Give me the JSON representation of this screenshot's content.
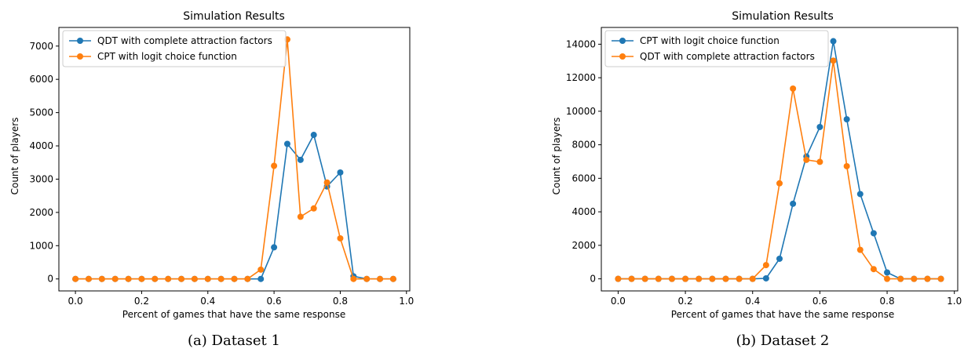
{
  "chart_data": [
    {
      "type": "line",
      "title": "Simulation Results",
      "xlabel": "Percent of games that have the same response",
      "ylabel": "Count of players",
      "caption": "(a) Dataset 1",
      "xlim": [
        -0.05,
        1.01
      ],
      "ylim": [
        -360,
        7560
      ],
      "xticks": [
        0.0,
        0.2,
        0.4,
        0.6,
        0.8,
        1.0
      ],
      "xtick_labels": [
        "0.0",
        "0.2",
        "0.4",
        "0.6",
        "0.8",
        "1.0"
      ],
      "yticks": [
        0,
        1000,
        2000,
        3000,
        4000,
        5000,
        6000,
        7000
      ],
      "ytick_labels": [
        "0",
        "1000",
        "2000",
        "3000",
        "4000",
        "5000",
        "6000",
        "7000"
      ],
      "legend_position": "top-left",
      "grid": false,
      "x": [
        0.0,
        0.04,
        0.08,
        0.12,
        0.16,
        0.2,
        0.24,
        0.28,
        0.32,
        0.36,
        0.4,
        0.44,
        0.48,
        0.52,
        0.56,
        0.6,
        0.64,
        0.68,
        0.72,
        0.76,
        0.8,
        0.84,
        0.88,
        0.92,
        0.96
      ],
      "series": [
        {
          "name": "QDT with complete attraction factors",
          "color": "#1f77b4",
          "values": [
            0,
            0,
            0,
            0,
            0,
            0,
            0,
            0,
            0,
            0,
            0,
            0,
            0,
            0,
            0,
            950,
            4060,
            3580,
            4330,
            2780,
            3200,
            80,
            0,
            0,
            0
          ]
        },
        {
          "name": "CPT with logit choice function",
          "color": "#ff7f0e",
          "values": [
            0,
            0,
            0,
            0,
            0,
            0,
            0,
            0,
            0,
            0,
            0,
            0,
            0,
            0,
            280,
            3400,
            7200,
            1870,
            2120,
            2900,
            1220,
            0,
            0,
            0,
            0
          ]
        }
      ]
    },
    {
      "type": "line",
      "title": "Simulation Results",
      "xlabel": "Percent of games that have the same response",
      "ylabel": "Count of players",
      "caption": "(b) Dataset 2",
      "xlim": [
        -0.05,
        1.01
      ],
      "ylim": [
        -720,
        15000
      ],
      "xticks": [
        0.0,
        0.2,
        0.4,
        0.6,
        0.8,
        1.0
      ],
      "xtick_labels": [
        "0.0",
        "0.2",
        "0.4",
        "0.6",
        "0.8",
        "1.0"
      ],
      "yticks": [
        0,
        2000,
        4000,
        6000,
        8000,
        10000,
        12000,
        14000
      ],
      "ytick_labels": [
        "0",
        "2000",
        "4000",
        "6000",
        "8000",
        "10000",
        "12000",
        "14000"
      ],
      "legend_position": "top-left",
      "grid": false,
      "x": [
        0.0,
        0.04,
        0.08,
        0.12,
        0.16,
        0.2,
        0.24,
        0.28,
        0.32,
        0.36,
        0.4,
        0.44,
        0.48,
        0.52,
        0.56,
        0.6,
        0.64,
        0.68,
        0.72,
        0.76,
        0.8,
        0.84,
        0.88,
        0.92,
        0.96
      ],
      "series": [
        {
          "name": "CPT with logit choice function",
          "color": "#1f77b4",
          "values": [
            0,
            0,
            0,
            0,
            0,
            0,
            0,
            0,
            0,
            0,
            0,
            30,
            1200,
            4480,
            7300,
            9060,
            14180,
            9520,
            5060,
            2720,
            380,
            0,
            0,
            0,
            0
          ]
        },
        {
          "name": "QDT with complete attraction factors",
          "color": "#ff7f0e",
          "values": [
            0,
            0,
            0,
            0,
            0,
            0,
            0,
            0,
            0,
            0,
            0,
            820,
            5700,
            11350,
            7100,
            6980,
            13020,
            6720,
            1730,
            580,
            0,
            0,
            0,
            0,
            0
          ]
        }
      ]
    }
  ]
}
